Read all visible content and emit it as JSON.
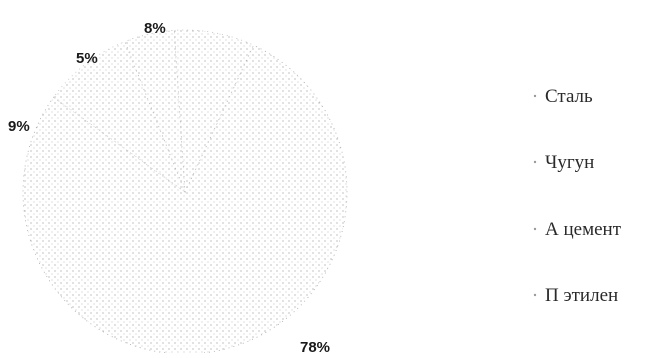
{
  "chart_data": {
    "type": "pie",
    "title": "",
    "categories": [
      "Сталь",
      "Чугун",
      "А цемент",
      "П этилен"
    ],
    "values": [
      78,
      9,
      5,
      8
    ],
    "labels": [
      "78%",
      "9%",
      "5%",
      "8%"
    ],
    "colors": [
      "#a8a8a8",
      "#c4c4c4",
      "#b4b4b4",
      "#bcbcbc"
    ],
    "legend": "right"
  }
}
